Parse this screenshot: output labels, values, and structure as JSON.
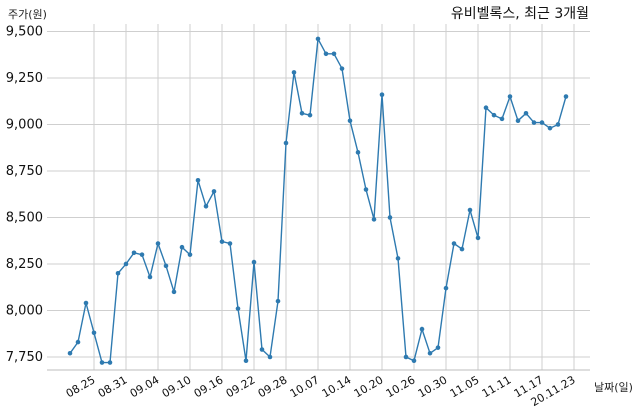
{
  "chart_data": {
    "type": "line",
    "title": "유비벨록스, 최근 3개월",
    "ylabel": "주가(원)",
    "xlabel": "날짜(일)",
    "ylim": [
      7680,
      9540
    ],
    "y_ticks": [
      7750,
      8000,
      8250,
      8500,
      8750,
      9000,
      9250,
      9500
    ],
    "y_tick_labels": [
      "7,750",
      "8,000",
      "8,250",
      "8,500",
      "8,750",
      "9,000",
      "9,250",
      "9,500"
    ],
    "x_tick_labels": [
      "08.25",
      "08.31",
      "09.04",
      "09.10",
      "09.16",
      "09.22",
      "09.28",
      "10.07",
      "10.14",
      "10.20",
      "10.26",
      "10.30",
      "11.05",
      "11.11",
      "11.17",
      "20.11.23"
    ],
    "x_tick_indices": [
      3,
      7,
      11,
      15,
      19,
      23,
      27,
      31,
      35,
      39,
      43,
      47,
      51,
      55,
      59,
      63
    ],
    "grid": true,
    "color": "#2e7ab0",
    "series": [
      {
        "values": [
          7770,
          7830,
          8040,
          7880,
          7720,
          7720,
          8200,
          8250,
          8310,
          8300,
          8180,
          8360,
          8240,
          8100,
          8340,
          8300,
          8700,
          8560,
          8640,
          8370,
          8360,
          8010,
          7730,
          8260,
          7790,
          7750,
          8050,
          8900,
          9280,
          9060,
          9050,
          9460,
          9380,
          9380,
          9300,
          9020,
          8850,
          8650,
          8490,
          9160,
          8500,
          8280,
          7750,
          7730,
          7900,
          7770,
          7800,
          8120,
          8360,
          8330,
          8540,
          8390,
          9090,
          9050,
          9030,
          9150,
          9020,
          9060,
          9010,
          9010,
          8980,
          9000,
          9150
        ]
      }
    ]
  }
}
